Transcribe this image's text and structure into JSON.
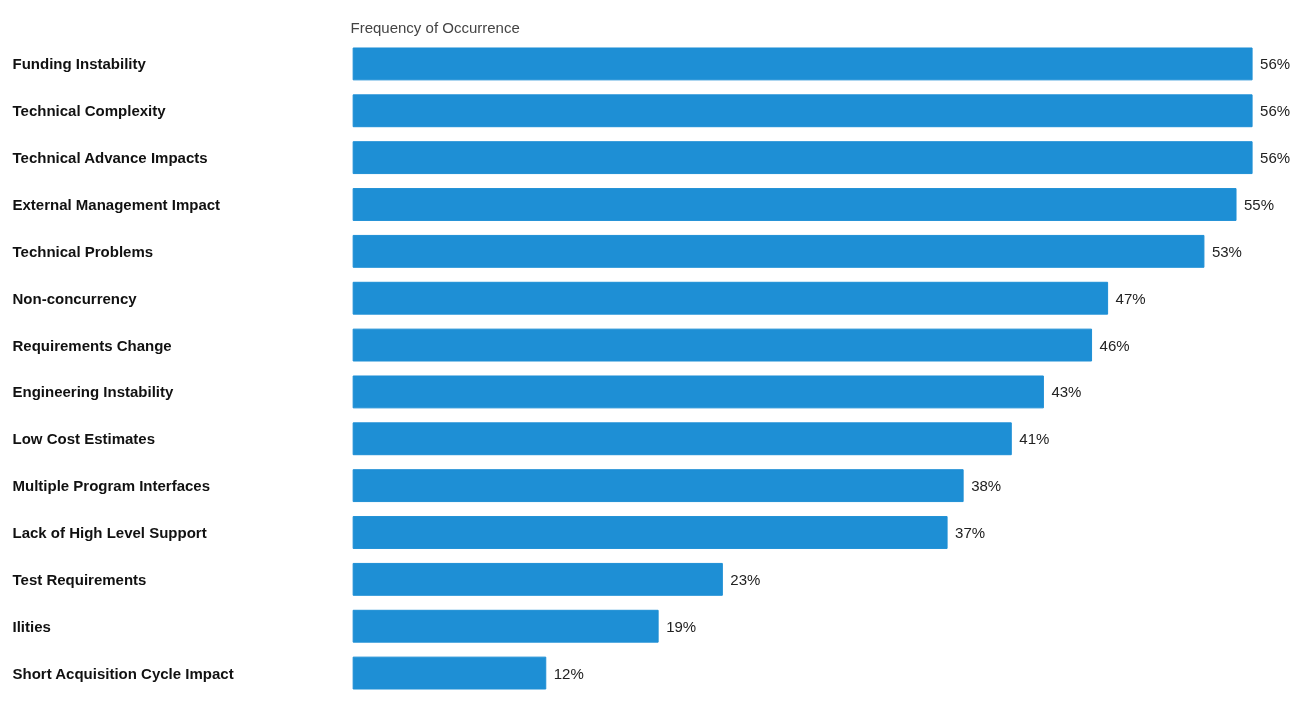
{
  "chart_data": {
    "type": "bar",
    "orientation": "horizontal",
    "title": "Frequency of Occurrence",
    "categories": [
      "Funding Instability",
      "Technical Complexity",
      "Technical Advance Impacts",
      "External Management Impact",
      "Technical Problems",
      "Non-concurrency",
      "Requirements Change",
      "Engineering Instability",
      "Low Cost Estimates",
      "Multiple Program Interfaces",
      "Lack of High Level Support",
      "Test Requirements",
      "Ilities",
      "Short Acquisition Cycle Impact"
    ],
    "values": [
      56,
      56,
      56,
      55,
      53,
      47,
      46,
      43,
      41,
      38,
      37,
      23,
      19,
      12
    ],
    "value_labels": [
      "56%",
      "56%",
      "56%",
      "55%",
      "53%",
      "47%",
      "46%",
      "43%",
      "41%",
      "38%",
      "37%",
      "23%",
      "19%",
      "12%"
    ],
    "color": "#1e8fd5",
    "grid": false
  }
}
